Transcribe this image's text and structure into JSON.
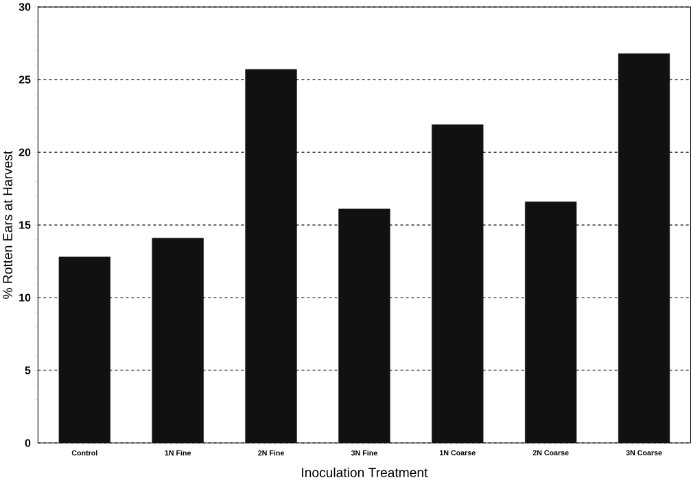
{
  "chart_data": {
    "type": "bar",
    "xlabel": "Inoculation Treatment",
    "ylabel": "% Rotten Ears at Harvest",
    "categories": [
      "Control",
      "1N Fine",
      "2N Fine",
      "3N Fine",
      "1N Coarse",
      "2N Coarse",
      "3N Coarse"
    ],
    "values": [
      12.8,
      14.1,
      25.7,
      16.1,
      21.9,
      16.6,
      26.8
    ],
    "color": "#111111",
    "ylim": [
      0,
      30
    ],
    "yticks": [
      0,
      5,
      10,
      15,
      20,
      25,
      30
    ],
    "grid": "y",
    "line_style": "dashed"
  }
}
